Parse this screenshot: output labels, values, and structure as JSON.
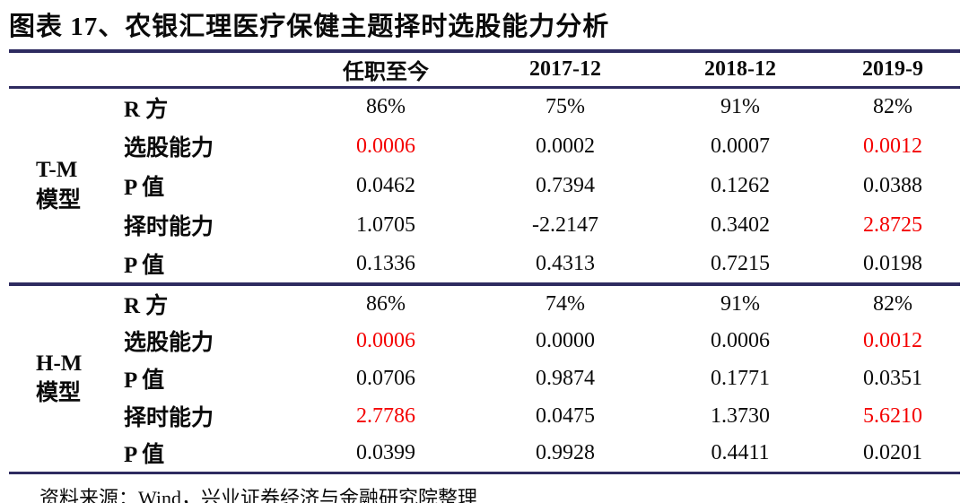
{
  "title": "图表 17、农银汇理医疗保健主题择时选股能力分析",
  "table": {
    "columns": [
      "任职至今",
      "2017-12",
      "2018-12",
      "2019-9"
    ],
    "sections": [
      {
        "group": [
          "T-M",
          "模型"
        ],
        "rows": [
          {
            "label": "R 方",
            "values": [
              "86%",
              "75%",
              "91%",
              "82%"
            ],
            "red": [
              false,
              false,
              false,
              false
            ]
          },
          {
            "label": "选股能力",
            "values": [
              "0.0006",
              "0.0002",
              "0.0007",
              "0.0012"
            ],
            "red": [
              true,
              false,
              false,
              true
            ]
          },
          {
            "label": "P 值",
            "values": [
              "0.0462",
              "0.7394",
              "0.1262",
              "0.0388"
            ],
            "red": [
              false,
              false,
              false,
              false
            ]
          },
          {
            "label": "择时能力",
            "values": [
              "1.0705",
              "-2.2147",
              "0.3402",
              "2.8725"
            ],
            "red": [
              false,
              false,
              false,
              true
            ]
          },
          {
            "label": "P 值",
            "values": [
              "0.1336",
              "0.4313",
              "0.7215",
              "0.0198"
            ],
            "red": [
              false,
              false,
              false,
              false
            ]
          }
        ]
      },
      {
        "group": [
          "H-M",
          "模型"
        ],
        "rows": [
          {
            "label": "R 方",
            "values": [
              "86%",
              "74%",
              "91%",
              "82%"
            ],
            "red": [
              false,
              false,
              false,
              false
            ]
          },
          {
            "label": "选股能力",
            "values": [
              "0.0006",
              "0.0000",
              "0.0006",
              "0.0012"
            ],
            "red": [
              true,
              false,
              false,
              true
            ]
          },
          {
            "label": "P 值",
            "values": [
              "0.0706",
              "0.9874",
              "0.1771",
              "0.0351"
            ],
            "red": [
              false,
              false,
              false,
              false
            ]
          },
          {
            "label": "择时能力",
            "values": [
              "2.7786",
              "0.0475",
              "1.3730",
              "5.6210"
            ],
            "red": [
              true,
              false,
              false,
              true
            ]
          },
          {
            "label": "P 值",
            "values": [
              "0.0399",
              "0.9928",
              "0.4411",
              "0.0201"
            ],
            "red": [
              false,
              false,
              false,
              false
            ]
          }
        ]
      }
    ]
  },
  "footer": "资料来源：Wind，兴业证券经济与金融研究院整理",
  "colors": {
    "rule": "#2e2b60",
    "highlight_red": "#f40000",
    "text": "#0a0a0a",
    "background": "#ffffff"
  }
}
